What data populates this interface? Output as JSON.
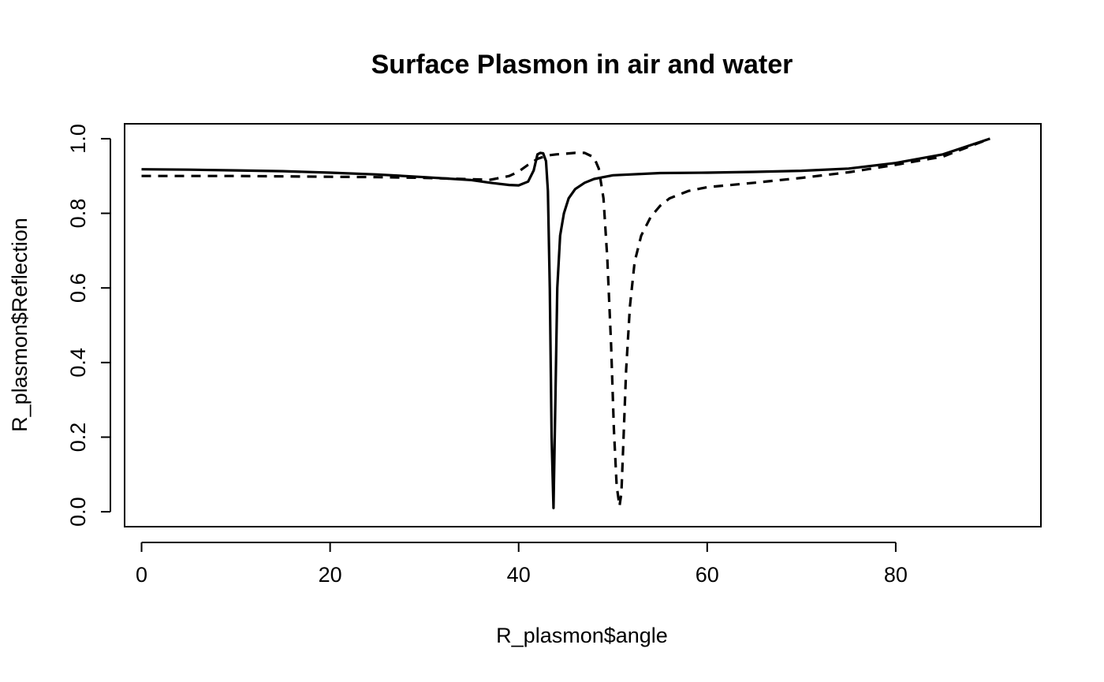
{
  "chart_data": {
    "type": "line",
    "title": "Surface Plasmon in air and water",
    "xlabel": "R_plasmon$angle",
    "ylabel": "R_plasmon$Reflection",
    "xlim": [
      -1.8,
      95.4
    ],
    "ylim": [
      -0.04,
      1.04
    ],
    "xticks": [
      0,
      20,
      40,
      60,
      80
    ],
    "yticks": [
      0.0,
      0.2,
      0.4,
      0.6,
      0.8,
      1.0
    ],
    "xtick_labels": [
      "0",
      "20",
      "40",
      "60",
      "80"
    ],
    "ytick_labels": [
      "0.0",
      "0.2",
      "0.4",
      "0.6",
      "0.8",
      "1.0"
    ],
    "grid": false,
    "series": [
      {
        "line_style": "solid",
        "color": "#000000",
        "x": [
          0,
          5,
          10,
          15,
          20,
          25,
          30,
          35,
          37,
          39,
          40,
          41,
          41.6,
          42,
          42.3,
          42.6,
          42.9,
          43.1,
          43.3,
          43.5,
          43.7,
          43.9,
          44.1,
          44.4,
          44.8,
          45.3,
          46,
          47,
          48,
          50,
          55,
          60,
          65,
          70,
          75,
          80,
          85,
          90
        ],
        "y": [
          0.918,
          0.917,
          0.915,
          0.913,
          0.909,
          0.904,
          0.897,
          0.889,
          0.882,
          0.876,
          0.875,
          0.885,
          0.915,
          0.958,
          0.962,
          0.961,
          0.94,
          0.86,
          0.6,
          0.2,
          0.01,
          0.3,
          0.6,
          0.74,
          0.8,
          0.84,
          0.865,
          0.882,
          0.892,
          0.902,
          0.908,
          0.909,
          0.911,
          0.914,
          0.92,
          0.935,
          0.958,
          1.0
        ]
      },
      {
        "line_style": "dashed",
        "color": "#000000",
        "x": [
          0,
          5,
          10,
          15,
          20,
          25,
          30,
          34,
          37,
          39,
          40,
          41,
          42,
          43,
          44,
          45,
          46,
          47,
          48,
          48.5,
          49,
          49.4,
          49.8,
          50.1,
          50.4,
          50.7,
          50.9,
          51.1,
          51.4,
          51.8,
          52.3,
          53,
          54,
          55,
          56,
          58,
          60,
          65,
          70,
          75,
          80,
          85,
          90
        ],
        "y": [
          0.9,
          0.9,
          0.9,
          0.899,
          0.898,
          0.897,
          0.895,
          0.892,
          0.89,
          0.9,
          0.912,
          0.93,
          0.946,
          0.955,
          0.958,
          0.96,
          0.962,
          0.962,
          0.95,
          0.92,
          0.84,
          0.68,
          0.45,
          0.22,
          0.07,
          0.015,
          0.05,
          0.18,
          0.38,
          0.55,
          0.67,
          0.74,
          0.79,
          0.82,
          0.84,
          0.86,
          0.87,
          0.882,
          0.895,
          0.91,
          0.93,
          0.952,
          1.0
        ]
      }
    ]
  }
}
